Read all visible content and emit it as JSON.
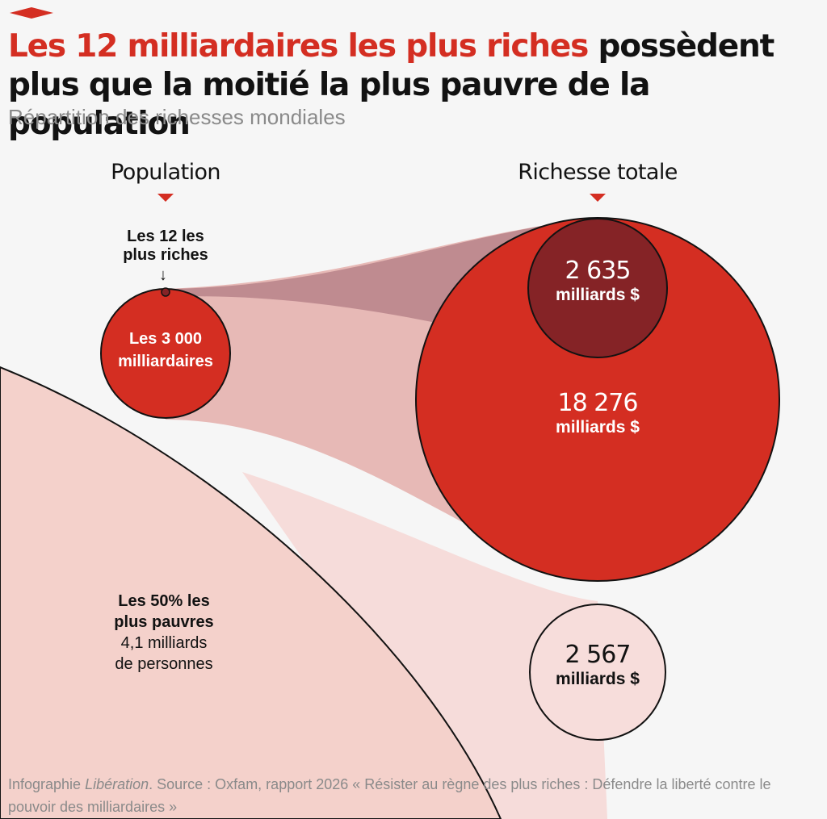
{
  "title": {
    "highlight": "Les 12 milliardaires les plus riches",
    "rest": " possèdent plus que la moitié la plus pauvre de la population"
  },
  "subtitle": "Répartition des richesses mondiales",
  "columns": {
    "population": "Population",
    "wealth": "Richesse totale"
  },
  "labels": {
    "top12_line1": "Les 12 les",
    "top12_line2": "plus riches",
    "billionaires_line1": "Les 3 000",
    "billionaires_line2": "milliardaires",
    "poorest_line1": "Les 50% les",
    "poorest_line2": "plus pauvres",
    "poorest_line3": "4,1 milliards",
    "poorest_line4": "de personnes"
  },
  "wealth": {
    "top12": {
      "value": "2 635",
      "unit": "milliards $",
      "amount": 2635
    },
    "billionaires": {
      "value": "18 276",
      "unit": "milliards $",
      "amount": 18276
    },
    "poorest": {
      "value": "2 567",
      "unit": "milliards $",
      "amount": 2567
    }
  },
  "source": {
    "prefix": "Infographie ",
    "outlet": "Libération",
    "rest": ". Source : Oxfam, rapport 2026 « Résister au règne des plus riches : Défendre la liberté contre le pouvoir des milliardaires »"
  },
  "colors": {
    "red": "#d42e22",
    "dark_red": "#852326",
    "band_dark": "#bf8b90",
    "band_medium": "#e7b9b6",
    "band_light": "#f6dcda",
    "poor_area": "#f4d1cb",
    "small_circle": "#f7dddb",
    "text": "#121212",
    "muted": "#8a8a8a"
  }
}
